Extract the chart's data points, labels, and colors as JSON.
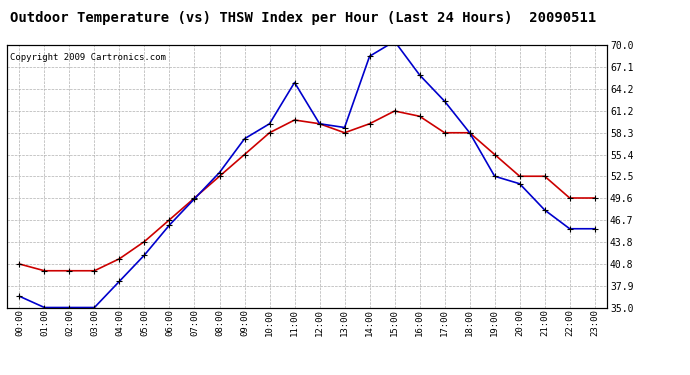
{
  "title": "Outdoor Temperature (vs) THSW Index per Hour (Last 24 Hours)  20090511",
  "copyright": "Copyright 2009 Cartronics.com",
  "hours": [
    "00:00",
    "01:00",
    "02:00",
    "03:00",
    "04:00",
    "05:00",
    "06:00",
    "07:00",
    "08:00",
    "09:00",
    "10:00",
    "11:00",
    "12:00",
    "13:00",
    "14:00",
    "15:00",
    "16:00",
    "17:00",
    "18:00",
    "19:00",
    "20:00",
    "21:00",
    "22:00",
    "23:00"
  ],
  "temp_red": [
    40.8,
    39.9,
    39.9,
    39.9,
    41.5,
    43.8,
    46.7,
    49.6,
    52.5,
    55.4,
    58.3,
    60.0,
    59.5,
    58.3,
    59.5,
    61.2,
    60.5,
    58.3,
    58.3,
    55.4,
    52.5,
    52.5,
    49.6,
    49.6
  ],
  "thsw_blue": [
    36.5,
    35.0,
    35.0,
    35.0,
    38.5,
    42.0,
    46.0,
    49.5,
    53.0,
    57.5,
    59.5,
    65.0,
    59.5,
    59.0,
    68.5,
    70.5,
    66.0,
    62.5,
    58.3,
    52.5,
    51.5,
    48.0,
    45.5,
    45.5
  ],
  "ylim_min": 35.0,
  "ylim_max": 70.0,
  "yticks": [
    35.0,
    37.9,
    40.8,
    43.8,
    46.7,
    49.6,
    52.5,
    55.4,
    58.3,
    61.2,
    64.2,
    67.1,
    70.0
  ],
  "background_color": "#ffffff",
  "plot_bg_color": "#ffffff",
  "grid_color": "#b0b0b0",
  "red_color": "#cc0000",
  "blue_color": "#0000cc",
  "title_fontsize": 10,
  "copyright_fontsize": 6.5
}
